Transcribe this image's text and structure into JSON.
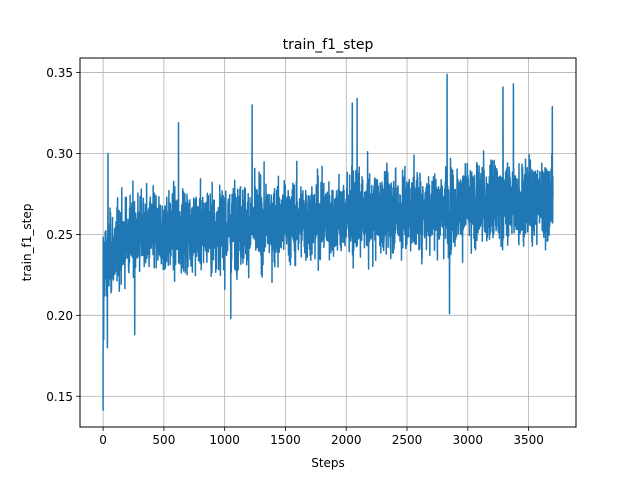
{
  "chart_data": {
    "type": "line",
    "title": "train_f1_step",
    "xlabel": "Steps",
    "ylabel": "train_f1_step",
    "xlim": [
      -190,
      3890
    ],
    "ylim": [
      0.131,
      0.359
    ],
    "xticks": [
      0,
      500,
      1000,
      1500,
      2000,
      2500,
      3000,
      3500
    ],
    "xtick_labels": [
      "0",
      "500",
      "1000",
      "1500",
      "2000",
      "2500",
      "3000",
      "3500"
    ],
    "yticks": [
      0.15,
      0.2,
      0.25,
      0.3,
      0.35
    ],
    "ytick_labels": [
      "0.15",
      "0.20",
      "0.25",
      "0.30",
      "0.35"
    ],
    "grid": true,
    "series": [
      {
        "name": "train_f1_step",
        "color": "#1f77b4",
        "x_start": 0,
        "x_end": 3700,
        "n_points": 3700,
        "mean_start": 0.248,
        "mean_end": 0.272,
        "spread": 0.022,
        "spikes": [
          {
            "x": 0,
            "y": 0.141
          },
          {
            "x": 5,
            "y": 0.185
          },
          {
            "x": 35,
            "y": 0.18
          },
          {
            "x": 40,
            "y": 0.3
          },
          {
            "x": 260,
            "y": 0.188
          },
          {
            "x": 620,
            "y": 0.319
          },
          {
            "x": 1050,
            "y": 0.198
          },
          {
            "x": 1225,
            "y": 0.33
          },
          {
            "x": 2050,
            "y": 0.331
          },
          {
            "x": 2090,
            "y": 0.334
          },
          {
            "x": 2830,
            "y": 0.349
          },
          {
            "x": 2850,
            "y": 0.201
          },
          {
            "x": 3290,
            "y": 0.341
          },
          {
            "x": 3375,
            "y": 0.343
          },
          {
            "x": 3695,
            "y": 0.329
          }
        ]
      }
    ]
  }
}
